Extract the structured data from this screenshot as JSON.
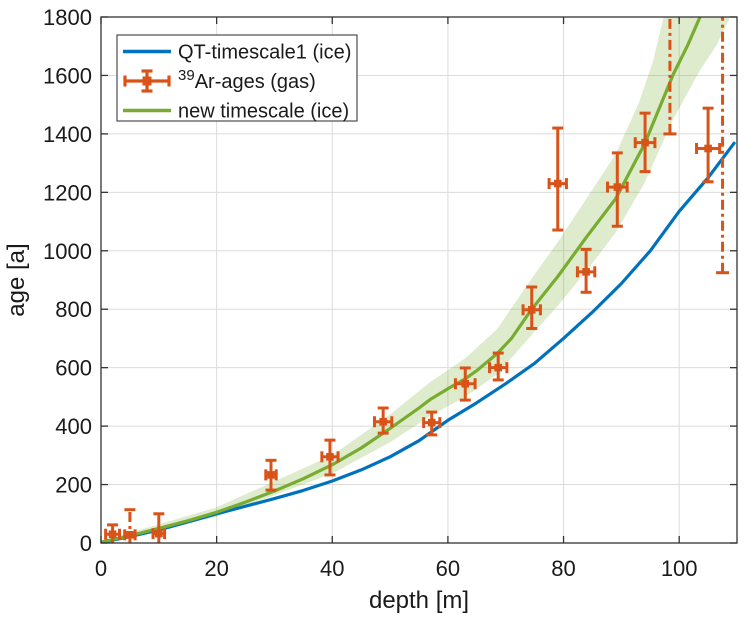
{
  "chart_data": {
    "type": "line",
    "title": "",
    "xlabel": "depth [m]",
    "ylabel": "age [a]",
    "xlim": [
      0,
      110
    ],
    "ylim": [
      0,
      1800
    ],
    "xticks": [
      0,
      20,
      40,
      60,
      80,
      100
    ],
    "yticks": [
      0,
      200,
      400,
      600,
      800,
      1000,
      1200,
      1400,
      1600,
      1800
    ],
    "grid": true,
    "colors": {
      "blue": "#0072BD",
      "orange": "#D95319",
      "green": "#77AC30",
      "band_fill": "rgba(119,172,48,0.24)",
      "grid_line": "#dcdcdc",
      "axis": "#333333",
      "text": "#1a1a1a"
    },
    "legend": {
      "position": "northwest",
      "entries": [
        {
          "sample": "line-blue",
          "color": "#0072BD",
          "label": "QT-timescale1 (ice)"
        },
        {
          "sample": "errorbar",
          "color": "#D95319",
          "label": "Ar-ages (gas)",
          "label_sup": "39"
        },
        {
          "sample": "line-green",
          "color": "#77AC30",
          "label": "new timescale (ice)"
        }
      ]
    },
    "series": [
      {
        "name": "QT-timescale1 (ice)",
        "type": "line",
        "color": "#0072BD",
        "points": [
          [
            0,
            2
          ],
          [
            5,
            22
          ],
          [
            10,
            45
          ],
          [
            15,
            72
          ],
          [
            20,
            100
          ],
          [
            25,
            126
          ],
          [
            30,
            152
          ],
          [
            35,
            180
          ],
          [
            40,
            212
          ],
          [
            45,
            250
          ],
          [
            50,
            295
          ],
          [
            55,
            350
          ],
          [
            60,
            420
          ],
          [
            65,
            480
          ],
          [
            70,
            545
          ],
          [
            75,
            615
          ],
          [
            80,
            700
          ],
          [
            85,
            790
          ],
          [
            90,
            888
          ],
          [
            95,
            1000
          ],
          [
            100,
            1135
          ],
          [
            105,
            1250
          ],
          [
            109.5,
            1368
          ]
        ]
      },
      {
        "name": "new timescale (ice)",
        "type": "line",
        "color": "#77AC30",
        "points": [
          [
            0,
            3
          ],
          [
            5,
            25
          ],
          [
            10,
            50
          ],
          [
            15,
            76
          ],
          [
            20,
            105
          ],
          [
            25,
            140
          ],
          [
            30,
            178
          ],
          [
            35,
            220
          ],
          [
            40,
            268
          ],
          [
            45,
            325
          ],
          [
            50,
            392
          ],
          [
            55,
            462
          ],
          [
            57,
            492
          ],
          [
            60,
            528
          ],
          [
            63,
            562
          ],
          [
            65,
            590
          ],
          [
            68.5,
            648
          ],
          [
            71,
            700
          ],
          [
            74.5,
            800
          ],
          [
            79,
            912
          ],
          [
            84,
            1048
          ],
          [
            89,
            1178
          ],
          [
            94,
            1365
          ],
          [
            99,
            1605
          ],
          [
            101.5,
            1705
          ],
          [
            103.6,
            1800
          ]
        ],
        "band_upper": [
          [
            0,
            6
          ],
          [
            20,
            122
          ],
          [
            40,
            300
          ],
          [
            50,
            440
          ],
          [
            57,
            552
          ],
          [
            63,
            632
          ],
          [
            68.5,
            732
          ],
          [
            74.5,
            905
          ],
          [
            79,
            1030
          ],
          [
            84,
            1180
          ],
          [
            89,
            1330
          ],
          [
            93,
            1505
          ],
          [
            95.5,
            1650
          ],
          [
            97.3,
            1800
          ]
        ],
        "band_lower": [
          [
            0,
            -6
          ],
          [
            20,
            90
          ],
          [
            40,
            238
          ],
          [
            50,
            345
          ],
          [
            57,
            436
          ],
          [
            63,
            500
          ],
          [
            68.5,
            578
          ],
          [
            74.5,
            712
          ],
          [
            79,
            812
          ],
          [
            84,
            932
          ],
          [
            89,
            1062
          ],
          [
            94,
            1232
          ],
          [
            99,
            1452
          ],
          [
            103.6,
            1618
          ],
          [
            106.5,
            1705
          ],
          [
            108.8,
            1800
          ]
        ]
      },
      {
        "name": "39Ar-ages (gas)",
        "type": "errorbar",
        "color": "#D95319",
        "points": [
          {
            "depth": 2.0,
            "age": 30,
            "err_minus": 30,
            "err_plus": 32,
            "xerr": 1.2
          },
          {
            "depth": 5.0,
            "age": 28,
            "err_minus": 28,
            "err_plus": 86,
            "xerr": 0.9,
            "style": "dashdot"
          },
          {
            "depth": 10.0,
            "age": 32,
            "err_minus": 32,
            "err_plus": 68,
            "xerr": 1.0
          },
          {
            "depth": 29.4,
            "age": 233,
            "err_minus": 52,
            "err_plus": 50,
            "xerr": 0.9
          },
          {
            "depth": 39.6,
            "age": 295,
            "err_minus": 62,
            "err_plus": 57,
            "xerr": 1.4
          },
          {
            "depth": 48.8,
            "age": 415,
            "err_minus": 39,
            "err_plus": 47,
            "xerr": 1.5
          },
          {
            "depth": 57.2,
            "age": 412,
            "err_minus": 42,
            "err_plus": 36,
            "xerr": 1.4
          },
          {
            "depth": 63.0,
            "age": 545,
            "err_minus": 56,
            "err_plus": 54,
            "xerr": 1.7
          },
          {
            "depth": 68.7,
            "age": 600,
            "err_minus": 42,
            "err_plus": 50,
            "xerr": 1.5
          },
          {
            "depth": 74.5,
            "age": 798,
            "err_minus": 64,
            "err_plus": 78,
            "xerr": 1.5
          },
          {
            "depth": 79.0,
            "age": 1230,
            "err_minus": 159,
            "err_plus": 190,
            "xerr": 1.5
          },
          {
            "depth": 83.9,
            "age": 928,
            "err_minus": 70,
            "err_plus": 77,
            "xerr": 1.5
          },
          {
            "depth": 89.3,
            "age": 1218,
            "err_minus": 134,
            "err_plus": 117,
            "xerr": 1.7
          },
          {
            "depth": 94.1,
            "age": 1370,
            "err_minus": 99,
            "err_plus": 101,
            "xerr": 1.7
          },
          {
            "depth": 105.0,
            "age": 1350,
            "err_minus": 114,
            "err_plus": 138,
            "xerr": 2.0
          }
        ],
        "censored_bars": [
          {
            "depth": 98.4,
            "age_min": 1400,
            "style": "dashdot"
          },
          {
            "depth": 107.5,
            "age_min": 925,
            "style": "dashdot"
          }
        ]
      }
    ]
  }
}
